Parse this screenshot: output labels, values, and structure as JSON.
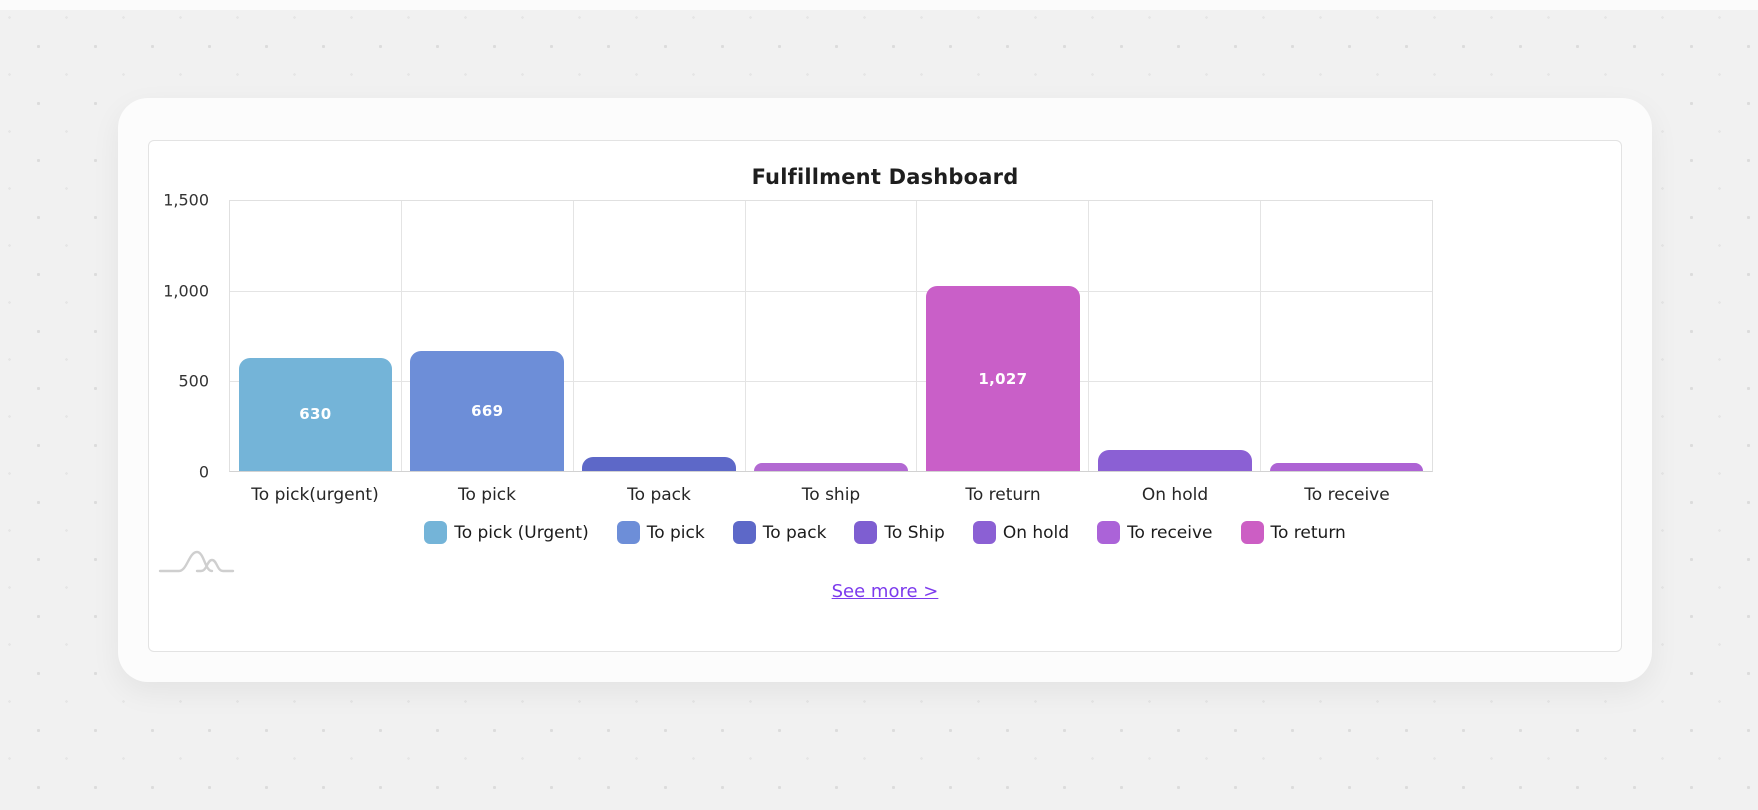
{
  "chart_data": {
    "type": "bar",
    "title": "Fulfillment Dashboard",
    "categories": [
      "To pick(urgent)",
      "To pick",
      "To pack",
      "To ship",
      "To return",
      "On hold",
      "To receive"
    ],
    "values": [
      630,
      669,
      80,
      45,
      1027,
      115,
      45
    ],
    "value_labels": [
      "630",
      "669",
      "",
      "",
      "1,027",
      "",
      ""
    ],
    "bar_colors": [
      "#74b4d8",
      "#6d8ed8",
      "#5d68c8",
      "#b269d2",
      "#c95fc8",
      "#8b60d4",
      "#ad63d4"
    ],
    "ylim": [
      0,
      1500
    ],
    "yticks": [
      "0",
      "500",
      "1,000",
      "1,500"
    ],
    "grid": true,
    "legend_position": "bottom",
    "legend": [
      {
        "label": "To pick (Urgent)",
        "color": "#74b4d8"
      },
      {
        "label": "To pick",
        "color": "#6d8ed8"
      },
      {
        "label": "To pack",
        "color": "#5d68c8"
      },
      {
        "label": "To Ship",
        "color": "#7e5ed1"
      },
      {
        "label": "On hold",
        "color": "#8b60d4"
      },
      {
        "label": "To receive",
        "color": "#ab63d8"
      },
      {
        "label": "To return",
        "color": "#cc5ec4"
      }
    ]
  },
  "footer": {
    "see_more_label": "See more >",
    "link_color": "#7c3aed"
  }
}
